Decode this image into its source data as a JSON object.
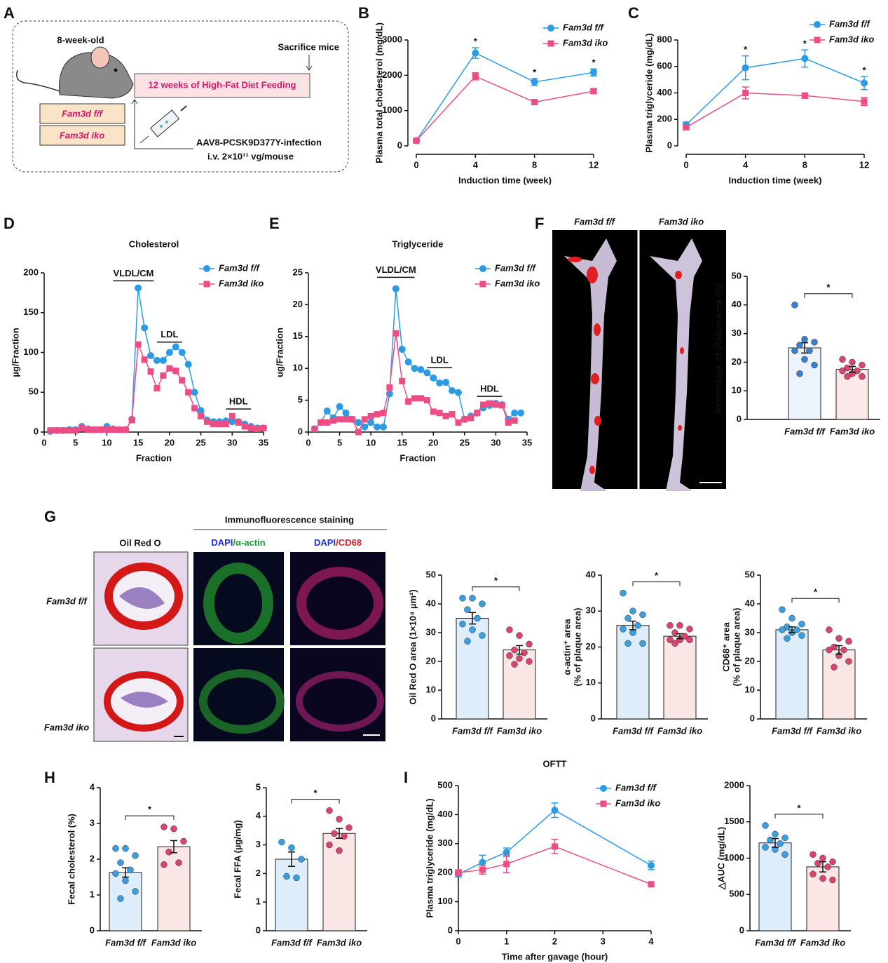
{
  "panel_labels": [
    "A",
    "B",
    "C",
    "D",
    "E",
    "F",
    "G",
    "H",
    "I"
  ],
  "diagram": {
    "age": "8-week-old",
    "groups": [
      "Fam3d f/f",
      "Fam3d iko"
    ],
    "diet": "12 weeks of High-Fat Diet Feeding",
    "end": "Sacrifice mice",
    "injection": [
      "AAV8-PCSK9D377Y-infection",
      "i.v. 2×10¹¹ vg/mouse"
    ]
  },
  "aorta_images": {
    "labels": [
      "Fam3d f/f",
      "Fam3d iko"
    ]
  },
  "staining": {
    "header": "Immunofluorescence staining",
    "oil_red_o": "Oil Red O",
    "actin": [
      "DAPI",
      "/α-actin"
    ],
    "cd68": [
      "DAPI",
      "/CD68"
    ],
    "rows": [
      "Fam3d f/f",
      "Fam3d iko"
    ]
  },
  "chart_data": [
    {
      "type": "line",
      "xlabel": "Induction time (week)",
      "ylabel": "Plasma total cholesterol (mg/dL)",
      "x": [
        0,
        4,
        8,
        12
      ],
      "xlim": [
        0,
        12
      ],
      "xticks": [
        0,
        4,
        8,
        12
      ],
      "ylim": [
        0,
        3000
      ],
      "yticks": [
        0,
        1000,
        2000,
        3000
      ],
      "legend": "top-right",
      "series": [
        {
          "name": "Fam3d f/f",
          "color": "#2b9be6",
          "marker": "circle",
          "values": [
            150,
            2630,
            1810,
            2080
          ],
          "errors": [
            20,
            150,
            100,
            100
          ]
        },
        {
          "name": "Fam3d iko",
          "color": "#ee4c85",
          "marker": "square",
          "values": [
            150,
            1970,
            1240,
            1550
          ],
          "errors": [
            20,
            100,
            60,
            60
          ]
        }
      ],
      "annotations": [
        {
          "x": 4,
          "label": "*"
        },
        {
          "x": 8,
          "label": "*"
        },
        {
          "x": 12,
          "label": "*"
        }
      ]
    },
    {
      "type": "line",
      "xlabel": "Induction time (week)",
      "ylabel": "Plasma triglyceride (mg/dL)",
      "x": [
        0,
        4,
        8,
        12
      ],
      "xlim": [
        0,
        12
      ],
      "xticks": [
        0,
        4,
        8,
        12
      ],
      "ylim": [
        0,
        800
      ],
      "yticks": [
        0,
        200,
        400,
        600,
        800
      ],
      "legend": "top-right",
      "series": [
        {
          "name": "Fam3d f/f",
          "color": "#2b9be6",
          "marker": "circle",
          "values": [
            160,
            590,
            660,
            475
          ],
          "errors": [
            20,
            90,
            65,
            50
          ]
        },
        {
          "name": "Fam3d iko",
          "color": "#ee4c85",
          "marker": "square",
          "values": [
            140,
            400,
            380,
            335
          ],
          "errors": [
            15,
            45,
            20,
            30
          ]
        }
      ],
      "annotations": [
        {
          "x": 4,
          "label": "*"
        },
        {
          "x": 8,
          "label": "*"
        },
        {
          "x": 12,
          "label": "*"
        }
      ]
    },
    {
      "type": "line",
      "title": "Cholesterol",
      "xlabel": "Fraction",
      "ylabel": "µg/Fraction",
      "x": [
        1,
        2,
        3,
        4,
        5,
        6,
        7,
        8,
        9,
        10,
        11,
        12,
        13,
        14,
        15,
        16,
        17,
        18,
        19,
        20,
        21,
        22,
        23,
        24,
        25,
        26,
        27,
        28,
        29,
        30,
        31,
        32,
        33,
        34,
        35
      ],
      "xlim": [
        0,
        35
      ],
      "xticks": [
        0,
        5,
        10,
        15,
        20,
        25,
        30,
        35
      ],
      "ylim": [
        0,
        200
      ],
      "yticks": [
        0,
        50,
        100,
        150,
        200
      ],
      "legend": "top-right",
      "series": [
        {
          "name": "Fam3d f/f",
          "color": "#2b9be6",
          "marker": "circle",
          "values": [
            1,
            2,
            2,
            3,
            3,
            7,
            4,
            3,
            3,
            7,
            4,
            3,
            3,
            16,
            181,
            131,
            96,
            90,
            90,
            100,
            107,
            100,
            85,
            50,
            27,
            15,
            13,
            13,
            14,
            13,
            13,
            10,
            7,
            5,
            5
          ]
        },
        {
          "name": "Fam3d iko",
          "color": "#ee4c85",
          "marker": "square",
          "values": [
            2,
            2,
            2,
            2,
            2,
            5,
            3,
            3,
            3,
            3,
            3,
            3,
            3,
            15,
            110,
            91,
            76,
            55,
            71,
            80,
            77,
            65,
            50,
            30,
            20,
            13,
            10,
            10,
            10,
            20,
            12,
            7,
            5,
            4,
            5
          ]
        }
      ],
      "ranges": [
        {
          "label": "VLDL/CM",
          "from": 11,
          "to": 17.5,
          "y": 190
        },
        {
          "label": "LDL",
          "from": 18,
          "to": 22,
          "y": 113
        },
        {
          "label": "HDL",
          "from": 29,
          "to": 33,
          "y": 29
        }
      ]
    },
    {
      "type": "line",
      "title": "Triglyceride",
      "xlabel": "Fraction",
      "ylabel": "ug/Fraction",
      "x": [
        1,
        2,
        3,
        4,
        5,
        6,
        7,
        8,
        9,
        10,
        11,
        12,
        13,
        14,
        15,
        16,
        17,
        18,
        19,
        20,
        21,
        22,
        23,
        24,
        25,
        26,
        27,
        28,
        29,
        30,
        31,
        32,
        33,
        34
      ],
      "xlim": [
        0,
        35
      ],
      "xticks": [
        0,
        5,
        10,
        15,
        20,
        25,
        30,
        35
      ],
      "ylim": [
        0,
        25
      ],
      "yticks": [
        0,
        5,
        10,
        15,
        20,
        25
      ],
      "legend": "top-right",
      "series": [
        {
          "name": "Fam3d f/f",
          "color": "#2b9be6",
          "marker": "circle",
          "values": [
            0.5,
            1.5,
            3.3,
            2.2,
            4,
            3,
            2,
            1.5,
            0.8,
            1.5,
            0.8,
            0.8,
            6,
            22.5,
            13,
            11,
            10,
            9.8,
            9.3,
            8.5,
            7.7,
            7.8,
            6.5,
            6.2,
            2,
            2.5,
            3,
            3.8,
            4.2,
            4.5,
            4.3,
            2,
            3,
            3
          ]
        },
        {
          "name": "Fam3d iko",
          "color": "#ee4c85",
          "marker": "square",
          "values": [
            0.5,
            1.5,
            1.5,
            1.8,
            2,
            2,
            2,
            0,
            2,
            2.5,
            2.8,
            3,
            7,
            15.5,
            8,
            4.8,
            5.3,
            5.3,
            5,
            3.2,
            3,
            2.5,
            2.8,
            1.5,
            2,
            2.2,
            3,
            4.3,
            4.5,
            4.3,
            4.2,
            1.5,
            1.8,
            null
          ]
        }
      ],
      "ranges": [
        {
          "label": "VLDL/CM",
          "from": 11,
          "to": 17,
          "y": 24.3
        },
        {
          "label": "LDL",
          "from": 19,
          "to": 23,
          "y": 10.1
        },
        {
          "label": "HDL",
          "from": 27,
          "to": 31,
          "y": 5.6
        }
      ]
    },
    {
      "type": "bar",
      "ylabel": "Percentage of plaque area (%)",
      "categories": [
        "Fam3d f/f",
        "Fam3d iko"
      ],
      "ylim": [
        0,
        50
      ],
      "yticks": [
        0,
        10,
        20,
        30,
        40,
        50
      ],
      "values": [
        25,
        17.5
      ],
      "errors": [
        1.8,
        1
      ],
      "colors": [
        "#edf3fb",
        "#fbe9e9"
      ],
      "point_colors": [
        "#3a7fd0",
        "#d94470"
      ],
      "points": [
        [
          40,
          28,
          27,
          26,
          24,
          24,
          21,
          19,
          16
        ],
        [
          21,
          20,
          19,
          18,
          17,
          17,
          16,
          15,
          15
        ]
      ],
      "significance": "*"
    },
    {
      "type": "bar",
      "ylabel": "Oil Red O area (1×10⁴ µm²)",
      "categories": [
        "Fam3d f/f",
        "Fam3d iko"
      ],
      "ylim": [
        0,
        50
      ],
      "yticks": [
        0,
        10,
        20,
        30,
        40,
        50
      ],
      "values": [
        35,
        24
      ],
      "errors": [
        2,
        1.5
      ],
      "colors": [
        "#ddeefa",
        "#fbe6e6"
      ],
      "point_colors": [
        "#3a9ee0",
        "#d94470"
      ],
      "points": [
        [
          42,
          42,
          40,
          38,
          35,
          33,
          31,
          29,
          27
        ],
        [
          31,
          29,
          26,
          24,
          23,
          22,
          21,
          20,
          19
        ]
      ],
      "significance": "*"
    },
    {
      "type": "bar",
      "ylabel": [
        "α-actin⁺ area",
        "(% of plaque area)"
      ],
      "categories": [
        "Fam3d f/f",
        "Fam3d iko"
      ],
      "ylim": [
        0,
        40
      ],
      "yticks": [
        0,
        10,
        20,
        30,
        40
      ],
      "values": [
        26,
        23
      ],
      "errors": [
        1.2,
        0.7
      ],
      "colors": [
        "#ddeefa",
        "#fbe6e6"
      ],
      "point_colors": [
        "#3a9ee0",
        "#d94470"
      ],
      "points": [
        [
          35,
          30,
          29,
          28,
          26,
          25,
          24,
          21,
          21
        ],
        [
          26,
          26,
          25,
          24,
          23,
          22,
          22,
          22,
          21
        ]
      ],
      "significance": "*"
    },
    {
      "type": "bar",
      "ylabel": [
        "CD68⁺ area",
        "(% of plaque area)"
      ],
      "categories": [
        "Fam3d f/f",
        "Fam3d iko"
      ],
      "ylim": [
        0,
        50
      ],
      "yticks": [
        0,
        10,
        20,
        30,
        40,
        50
      ],
      "values": [
        31,
        24
      ],
      "errors": [
        1,
        1.5
      ],
      "colors": [
        "#ddeefa",
        "#fbe6e6"
      ],
      "point_colors": [
        "#3a9ee0",
        "#d94470"
      ],
      "points": [
        [
          38,
          35,
          33,
          32,
          31,
          31,
          30,
          29,
          28
        ],
        [
          31,
          28,
          27,
          25,
          24,
          24,
          22,
          20,
          18
        ]
      ],
      "significance": "*"
    },
    {
      "type": "bar",
      "ylabel": "Fecal cholesterol (%)",
      "categories": [
        "Fam3d f/f",
        "Fam3d iko"
      ],
      "ylim": [
        0,
        4
      ],
      "yticks": [
        0,
        1,
        2,
        3,
        4
      ],
      "values": [
        1.63,
        2.35
      ],
      "errors": [
        0.13,
        0.17
      ],
      "colors": [
        "#ddeefa",
        "#fbe6e6"
      ],
      "point_colors": [
        "#3a9ee0",
        "#d94470"
      ],
      "points": [
        [
          2.3,
          2.3,
          2.1,
          1.9,
          1.7,
          1.6,
          1.4,
          1.1,
          0.9
        ],
        [
          2.9,
          2.85,
          2.5,
          2.2,
          1.9,
          1.85
        ]
      ],
      "significance": "*"
    },
    {
      "type": "bar",
      "ylabel": "Fecal FFA (µg/mg)",
      "categories": [
        "Fam3d f/f",
        "Fam3d iko"
      ],
      "ylim": [
        0,
        5
      ],
      "yticks": [
        0,
        1,
        2,
        3,
        4,
        5
      ],
      "values": [
        2.5,
        3.4
      ],
      "errors": [
        0.25,
        0.17
      ],
      "colors": [
        "#ddeefa",
        "#fbe6e6"
      ],
      "point_colors": [
        "#3a9ee0",
        "#d94470"
      ],
      "points": [
        [
          3.1,
          2.9,
          2.5,
          1.9,
          1.85
        ],
        [
          4.2,
          3.9,
          3.6,
          3.4,
          3.3,
          3,
          2.8
        ]
      ],
      "significance": "*"
    },
    {
      "type": "line",
      "title": "OFTT",
      "xlabel": "Time after gavage (hour)",
      "ylabel": "Plasma triglyceride (mg/dL)",
      "x": [
        0,
        0.5,
        1,
        2,
        4
      ],
      "xlim": [
        0,
        4
      ],
      "xticks": [
        0,
        1,
        2,
        3,
        4
      ],
      "ylim": [
        0,
        500
      ],
      "yticks": [
        0,
        100,
        200,
        300,
        400,
        500
      ],
      "legend": "top-right",
      "series": [
        {
          "name": "Fam3d f/f",
          "color": "#2b9be6",
          "marker": "circle",
          "values": [
            195,
            235,
            270,
            415,
            225
          ],
          "errors": [
            10,
            25,
            15,
            25,
            15
          ]
        },
        {
          "name": "Fam3d iko",
          "color": "#ee4c85",
          "marker": "square",
          "values": [
            200,
            210,
            230,
            290,
            160
          ],
          "errors": [
            10,
            15,
            30,
            25,
            5
          ]
        }
      ]
    },
    {
      "type": "bar",
      "ylabel": "△AUC (mg/dL)",
      "categories": [
        "Fam3d f/f",
        "Fam3d iko"
      ],
      "ylim": [
        0,
        2000
      ],
      "yticks": [
        0,
        500,
        1000,
        1500,
        2000
      ],
      "values": [
        1210,
        880
      ],
      "errors": [
        60,
        70
      ],
      "colors": [
        "#ddeefa",
        "#fbe6e6"
      ],
      "point_colors": [
        "#3a9ee0",
        "#d94470"
      ],
      "points": [
        [
          1450,
          1330,
          1280,
          1250,
          1200,
          1150,
          1120,
          1050
        ],
        [
          1050,
          1000,
          950,
          930,
          880,
          780,
          720,
          700
        ]
      ],
      "significance": "*"
    }
  ]
}
